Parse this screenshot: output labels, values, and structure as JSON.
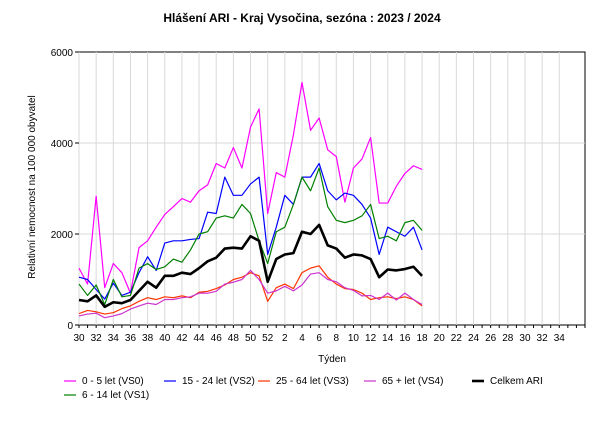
{
  "chart_data": {
    "type": "line",
    "title": "Hlášení ARI  -   Kraj Vysočina, sezóna : 2023 / 2024",
    "xlabel": "Týden",
    "ylabel": "Relativní nemocnost na 100 000 obyvatel",
    "ylim": [
      0,
      6000
    ],
    "yticks": [
      0,
      2000,
      4000,
      6000
    ],
    "grid": true,
    "legend": "bottom",
    "x_label_weeks": [
      30,
      32,
      34,
      36,
      38,
      40,
      42,
      44,
      46,
      48,
      50,
      52,
      2,
      4,
      6,
      8,
      10,
      12,
      14,
      16,
      18,
      20,
      22,
      24,
      26,
      28,
      30,
      32,
      34
    ],
    "x": [
      30,
      31,
      32,
      33,
      34,
      35,
      36,
      37,
      38,
      39,
      40,
      41,
      42,
      43,
      44,
      45,
      46,
      47,
      48,
      49,
      50,
      51,
      52,
      1,
      2,
      3,
      4,
      5,
      6,
      7,
      8,
      9,
      10,
      11,
      12,
      13,
      14,
      15,
      16,
      17,
      18
    ],
    "series": [
      {
        "name": "0 - 5 let (VS0)",
        "color": "#ff00ff",
        "width": 1.2,
        "values": [
          1250,
          900,
          2830,
          820,
          1350,
          1150,
          700,
          1700,
          1850,
          2150,
          2430,
          2600,
          2780,
          2700,
          2950,
          3080,
          3550,
          3450,
          3900,
          3450,
          4350,
          4750,
          2450,
          3350,
          3250,
          4180,
          5330,
          4280,
          4550,
          3850,
          3700,
          2700,
          3450,
          3650,
          4120,
          2680,
          2680,
          3050,
          3330,
          3500,
          3420
        ]
      },
      {
        "name": "15 - 24 let (VS2)",
        "color": "#0000ff",
        "width": 1.2,
        "values": [
          1050,
          1000,
          780,
          570,
          920,
          650,
          720,
          1150,
          1500,
          1200,
          1800,
          1850,
          1850,
          1880,
          1900,
          2480,
          2450,
          3250,
          2850,
          2850,
          3100,
          3250,
          1550,
          2150,
          2850,
          2650,
          3250,
          3250,
          3550,
          2950,
          2750,
          2900,
          2850,
          2650,
          2350,
          1550,
          2150,
          2050,
          1950,
          2150,
          1650
        ]
      },
      {
        "name": "25 - 64 let (VS3)",
        "color": "#ff3300",
        "width": 1.2,
        "values": [
          250,
          320,
          290,
          240,
          270,
          360,
          420,
          520,
          600,
          560,
          620,
          600,
          640,
          600,
          720,
          740,
          800,
          880,
          1000,
          1050,
          1150,
          1080,
          520,
          820,
          900,
          800,
          1150,
          1250,
          1300,
          1050,
          900,
          800,
          780,
          700,
          560,
          600,
          620,
          580,
          620,
          560,
          420
        ]
      },
      {
        "name": "65 + let (VS4)",
        "color": "#cc33cc",
        "width": 1.2,
        "values": [
          200,
          240,
          260,
          160,
          200,
          250,
          350,
          420,
          480,
          450,
          560,
          560,
          600,
          620,
          700,
          700,
          740,
          900,
          940,
          1000,
          1200,
          1000,
          700,
          750,
          850,
          750,
          880,
          1120,
          1150,
          1000,
          950,
          820,
          760,
          640,
          650,
          560,
          700,
          550,
          700,
          560,
          450
        ]
      },
      {
        "name": "6 - 14 let (VS1)",
        "color": "#008000",
        "width": 1.2,
        "values": [
          900,
          650,
          880,
          450,
          1000,
          620,
          650,
          1250,
          1350,
          1220,
          1280,
          1450,
          1380,
          1650,
          2000,
          2050,
          2350,
          2400,
          2350,
          2650,
          2450,
          1850,
          1350,
          2050,
          2150,
          2650,
          3250,
          2950,
          3450,
          2600,
          2300,
          2250,
          2300,
          2400,
          2650,
          1900,
          1950,
          1850,
          2250,
          2300,
          2080
        ]
      },
      {
        "name": "Celkem ARI",
        "color": "#000000",
        "width": 2.6,
        "values": [
          550,
          520,
          650,
          400,
          500,
          480,
          550,
          750,
          950,
          820,
          1080,
          1080,
          1150,
          1120,
          1250,
          1400,
          1480,
          1680,
          1700,
          1680,
          1950,
          1850,
          950,
          1450,
          1550,
          1580,
          2050,
          2000,
          2200,
          1750,
          1680,
          1480,
          1550,
          1530,
          1450,
          1050,
          1220,
          1200,
          1230,
          1280,
          1080
        ]
      }
    ]
  }
}
